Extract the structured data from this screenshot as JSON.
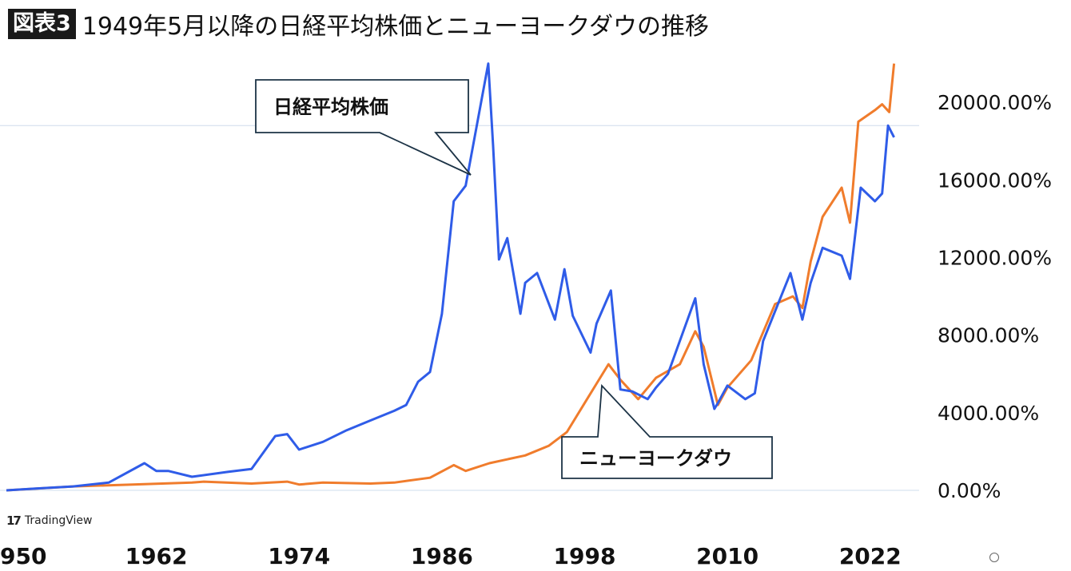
{
  "header": {
    "badge": "図表3",
    "title": "1949年5月以降の日経平均株価とニューヨークダウの推移"
  },
  "branding": {
    "logo_text": "TradingView",
    "logo_icon": "tradingview-logo-icon"
  },
  "colors": {
    "nikkei": "#2f5ce8",
    "dow": "#f07c2c",
    "axis_text": "#111111",
    "gridline": "#cfdcec"
  },
  "chart_data": {
    "type": "line",
    "title": "1949年5月以降の日経平均株価とニューヨークダウの推移",
    "xlabel": "",
    "ylabel": "",
    "x_ticks": [
      "950",
      "1962",
      "1974",
      "1986",
      "1998",
      "2010",
      "2022"
    ],
    "y_ticks": [
      "20000.00%",
      "16000.00%",
      "12000.00%",
      "8000.00%",
      "4000.00%",
      "0.00%"
    ],
    "y_tick_values": [
      20000,
      16000,
      12000,
      8000,
      4000,
      0
    ],
    "xlim": [
      1949.4,
      2024.5
    ],
    "ylim": [
      0,
      21900
    ],
    "grid": "single horizontal line near 18800%",
    "legend": "callouts",
    "series": [
      {
        "name": "日経平均株価",
        "x": [
          1949.4,
          1952,
          1955,
          1958,
          1961,
          1962,
          1963,
          1965,
          1968,
          1970,
          1972,
          1973,
          1974,
          1976,
          1978,
          1980,
          1982,
          1983,
          1984,
          1985,
          1986,
          1987,
          1988,
          1989.9,
          1990.3,
          1990.8,
          1991.5,
          1992.6,
          1993,
          1994,
          1995.5,
          1996.3,
          1997,
          1998.5,
          1999,
          2000.2,
          2001,
          2002,
          2003.3,
          2004,
          2005,
          2006,
          2007.3,
          2008,
          2008.9,
          2009.2,
          2010,
          2011.5,
          2012.3,
          2013,
          2015.3,
          2016.3,
          2017,
          2018,
          2019.6,
          2020.3,
          2021.2,
          2022.4,
          2023,
          2023.5,
          2024
        ],
        "values": [
          0,
          100,
          200,
          400,
          1400,
          1000,
          1000,
          700,
          950,
          1100,
          2800,
          2900,
          2100,
          2500,
          3100,
          3600,
          4100,
          4400,
          5600,
          6100,
          9100,
          14900,
          15700,
          22000,
          17800,
          11900,
          13000,
          9100,
          10700,
          11200,
          8800,
          11400,
          9000,
          7100,
          8600,
          10300,
          5200,
          5100,
          4700,
          5300,
          6000,
          7700,
          9900,
          6500,
          4200,
          4500,
          5400,
          4700,
          5000,
          7700,
          11200,
          8800,
          10700,
          12500,
          12100,
          10900,
          15600,
          14900,
          15300,
          18800,
          18200
        ]
      },
      {
        "name": "ニューヨークダウ",
        "x": [
          1949.4,
          1955,
          1960,
          1965,
          1966,
          1970,
          1973,
          1974,
          1976,
          1980,
          1982,
          1985,
          1987,
          1988,
          1990,
          1993,
          1995,
          1996.5,
          1998,
          1999,
          2000,
          2001,
          2002.5,
          2004,
          2006,
          2007.3,
          2008,
          2009.2,
          2010,
          2012,
          2014,
          2015.5,
          2016.3,
          2017,
          2018,
          2019.6,
          2020.3,
          2021,
          2022.4,
          2023,
          2023.6,
          2024
        ],
        "values": [
          0,
          200,
          300,
          400,
          450,
          350,
          450,
          300,
          400,
          350,
          400,
          650,
          1300,
          1000,
          1400,
          1800,
          2300,
          3000,
          4500,
          5500,
          6500,
          5700,
          4700,
          5800,
          6500,
          8200,
          7400,
          4400,
          5300,
          6700,
          9600,
          10000,
          9400,
          11800,
          14100,
          15600,
          13800,
          19000,
          19600,
          19900,
          19500,
          22000
        ]
      }
    ],
    "annotations": [
      {
        "series": "日経平均株価",
        "text": "日経平均株価"
      },
      {
        "series": "ニューヨークダウ",
        "text": "ニューヨークダウ"
      }
    ]
  }
}
